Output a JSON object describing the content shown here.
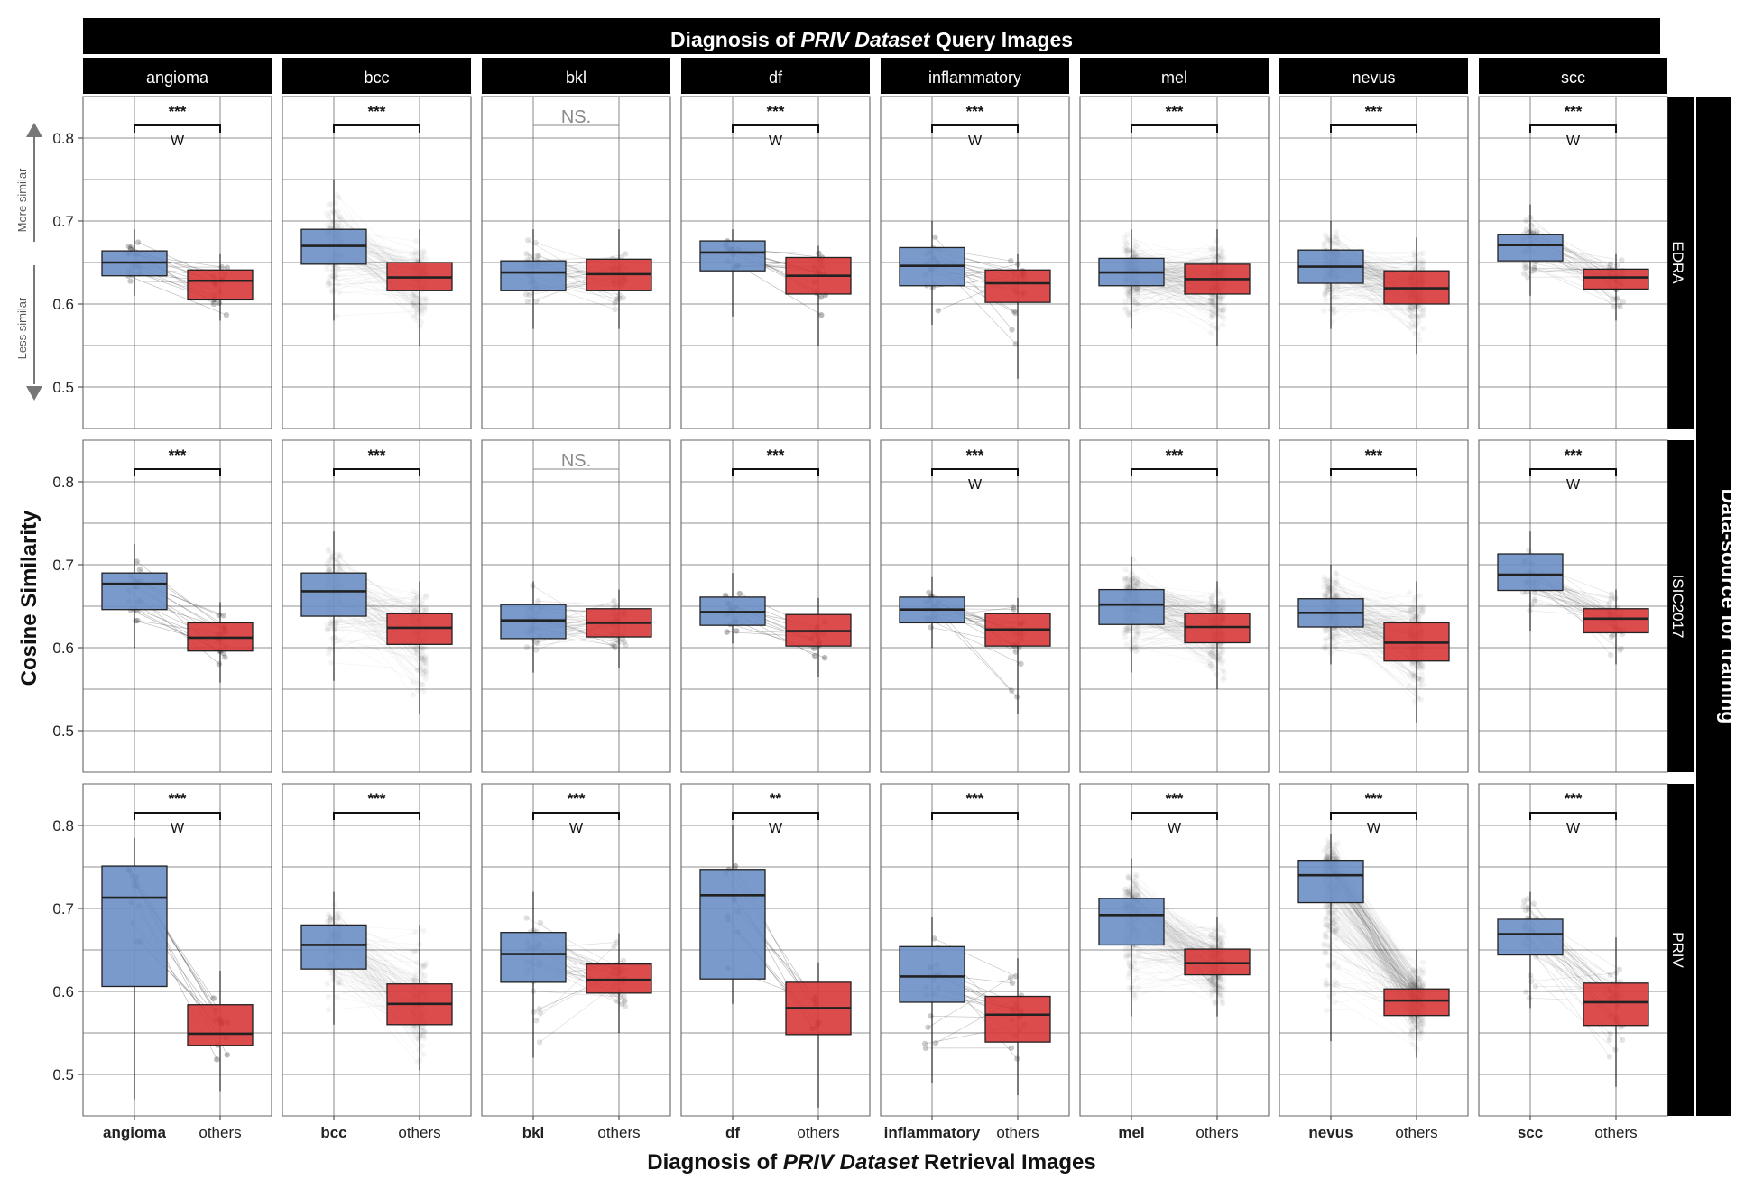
{
  "chart_data": {
    "type": "box",
    "title": "Diagnosis of PRIV Dataset Query Images",
    "title_parts": {
      "pre": "Diagnosis of ",
      "italic": "PRIV Dataset",
      "post": " Query Images"
    },
    "xlabel": "Diagnosis of PRIV Dataset Retrieval Images",
    "xlabel_parts": {
      "pre": "Diagnosis of ",
      "italic": "PRIV Dataset",
      "post": " Retrieval Images"
    },
    "ylabel": "Cosine Similarity",
    "right_strip_title": "Data-source for training",
    "columns": [
      "angioma",
      "bcc",
      "bkl",
      "df",
      "inflammatory",
      "mel",
      "nevus",
      "scc"
    ],
    "rows": [
      "EDRA",
      "ISIC2017",
      "PRIV"
    ],
    "x_categories": [
      "<column>",
      "others"
    ],
    "others_label": "others",
    "ylim": [
      0.45,
      0.85
    ],
    "yticks": [
      0.5,
      0.6,
      0.7,
      0.8
    ],
    "grid": true,
    "direction_arrow": {
      "up_label": "More similar",
      "down_label": "Less similar"
    },
    "colors": {
      "query_box": "#6b8fc7",
      "others_box": "#d8383a",
      "strip": "#000000",
      "line": "#b5b5b5"
    },
    "panels": [
      {
        "row": "EDRA",
        "col": "angioma",
        "sig": "***",
        "w": true,
        "match": {
          "q1": 0.634,
          "med": 0.65,
          "q3": 0.664,
          "lo": 0.61,
          "hi": 0.69
        },
        "others": {
          "q1": 0.605,
          "med": 0.628,
          "q3": 0.641,
          "lo": 0.58,
          "hi": 0.66
        },
        "n": 18
      },
      {
        "row": "EDRA",
        "col": "bcc",
        "sig": "***",
        "w": false,
        "match": {
          "q1": 0.648,
          "med": 0.67,
          "q3": 0.69,
          "lo": 0.58,
          "hi": 0.75
        },
        "others": {
          "q1": 0.616,
          "med": 0.632,
          "q3": 0.65,
          "lo": 0.55,
          "hi": 0.69
        },
        "n": 120
      },
      {
        "row": "EDRA",
        "col": "bkl",
        "sig": "NS.",
        "w": false,
        "match": {
          "q1": 0.616,
          "med": 0.638,
          "q3": 0.652,
          "lo": 0.57,
          "hi": 0.69
        },
        "others": {
          "q1": 0.616,
          "med": 0.636,
          "q3": 0.654,
          "lo": 0.57,
          "hi": 0.69
        },
        "n": 35
      },
      {
        "row": "EDRA",
        "col": "df",
        "sig": "***",
        "w": true,
        "match": {
          "q1": 0.64,
          "med": 0.662,
          "q3": 0.676,
          "lo": 0.585,
          "hi": 0.69
        },
        "others": {
          "q1": 0.612,
          "med": 0.634,
          "q3": 0.656,
          "lo": 0.55,
          "hi": 0.67
        },
        "n": 14
      },
      {
        "row": "EDRA",
        "col": "inflammatory",
        "sig": "***",
        "w": true,
        "match": {
          "q1": 0.622,
          "med": 0.646,
          "q3": 0.668,
          "lo": 0.575,
          "hi": 0.7
        },
        "others": {
          "q1": 0.602,
          "med": 0.625,
          "q3": 0.641,
          "lo": 0.51,
          "hi": 0.66
        },
        "n": 20
      },
      {
        "row": "EDRA",
        "col": "mel",
        "sig": "***",
        "w": false,
        "match": {
          "q1": 0.622,
          "med": 0.638,
          "q3": 0.655,
          "lo": 0.57,
          "hi": 0.69
        },
        "others": {
          "q1": 0.612,
          "med": 0.63,
          "q3": 0.648,
          "lo": 0.55,
          "hi": 0.69
        },
        "n": 200
      },
      {
        "row": "EDRA",
        "col": "nevus",
        "sig": "***",
        "w": false,
        "match": {
          "q1": 0.625,
          "med": 0.645,
          "q3": 0.665,
          "lo": 0.57,
          "hi": 0.7
        },
        "others": {
          "q1": 0.6,
          "med": 0.619,
          "q3": 0.64,
          "lo": 0.54,
          "hi": 0.68
        },
        "n": 200
      },
      {
        "row": "EDRA",
        "col": "scc",
        "sig": "***",
        "w": true,
        "match": {
          "q1": 0.652,
          "med": 0.671,
          "q3": 0.684,
          "lo": 0.61,
          "hi": 0.72
        },
        "others": {
          "q1": 0.618,
          "med": 0.632,
          "q3": 0.642,
          "lo": 0.58,
          "hi": 0.66
        },
        "n": 40
      },
      {
        "row": "ISIC2017",
        "col": "angioma",
        "sig": "***",
        "w": false,
        "match": {
          "q1": 0.646,
          "med": 0.677,
          "q3": 0.69,
          "lo": 0.6,
          "hi": 0.725
        },
        "others": {
          "q1": 0.596,
          "med": 0.612,
          "q3": 0.63,
          "lo": 0.558,
          "hi": 0.655
        },
        "n": 18
      },
      {
        "row": "ISIC2017",
        "col": "bcc",
        "sig": "***",
        "w": false,
        "match": {
          "q1": 0.638,
          "med": 0.668,
          "q3": 0.69,
          "lo": 0.56,
          "hi": 0.74
        },
        "others": {
          "q1": 0.604,
          "med": 0.624,
          "q3": 0.641,
          "lo": 0.52,
          "hi": 0.68
        },
        "n": 120
      },
      {
        "row": "ISIC2017",
        "col": "bkl",
        "sig": "NS.",
        "w": false,
        "match": {
          "q1": 0.611,
          "med": 0.633,
          "q3": 0.652,
          "lo": 0.57,
          "hi": 0.68
        },
        "others": {
          "q1": 0.613,
          "med": 0.63,
          "q3": 0.647,
          "lo": 0.575,
          "hi": 0.67
        },
        "n": 35
      },
      {
        "row": "ISIC2017",
        "col": "df",
        "sig": "***",
        "w": false,
        "match": {
          "q1": 0.627,
          "med": 0.643,
          "q3": 0.661,
          "lo": 0.605,
          "hi": 0.69
        },
        "others": {
          "q1": 0.602,
          "med": 0.62,
          "q3": 0.64,
          "lo": 0.565,
          "hi": 0.66
        },
        "n": 14
      },
      {
        "row": "ISIC2017",
        "col": "inflammatory",
        "sig": "***",
        "w": true,
        "match": {
          "q1": 0.63,
          "med": 0.646,
          "q3": 0.661,
          "lo": 0.6,
          "hi": 0.685
        },
        "others": {
          "q1": 0.602,
          "med": 0.622,
          "q3": 0.641,
          "lo": 0.52,
          "hi": 0.66
        },
        "n": 20
      },
      {
        "row": "ISIC2017",
        "col": "mel",
        "sig": "***",
        "w": false,
        "match": {
          "q1": 0.628,
          "med": 0.652,
          "q3": 0.67,
          "lo": 0.57,
          "hi": 0.71
        },
        "others": {
          "q1": 0.606,
          "med": 0.625,
          "q3": 0.641,
          "lo": 0.55,
          "hi": 0.68
        },
        "n": 200
      },
      {
        "row": "ISIC2017",
        "col": "nevus",
        "sig": "***",
        "w": false,
        "match": {
          "q1": 0.625,
          "med": 0.642,
          "q3": 0.659,
          "lo": 0.58,
          "hi": 0.7
        },
        "others": {
          "q1": 0.584,
          "med": 0.606,
          "q3": 0.63,
          "lo": 0.51,
          "hi": 0.68
        },
        "n": 200
      },
      {
        "row": "ISIC2017",
        "col": "scc",
        "sig": "***",
        "w": true,
        "match": {
          "q1": 0.669,
          "med": 0.688,
          "q3": 0.713,
          "lo": 0.62,
          "hi": 0.74
        },
        "others": {
          "q1": 0.618,
          "med": 0.635,
          "q3": 0.647,
          "lo": 0.58,
          "hi": 0.67
        },
        "n": 40
      },
      {
        "row": "PRIV",
        "col": "angioma",
        "sig": "***",
        "w": true,
        "match": {
          "q1": 0.606,
          "med": 0.713,
          "q3": 0.751,
          "lo": 0.47,
          "hi": 0.785
        },
        "others": {
          "q1": 0.535,
          "med": 0.549,
          "q3": 0.584,
          "lo": 0.48,
          "hi": 0.625
        },
        "n": 12
      },
      {
        "row": "PRIV",
        "col": "bcc",
        "sig": "***",
        "w": false,
        "match": {
          "q1": 0.627,
          "med": 0.656,
          "q3": 0.68,
          "lo": 0.56,
          "hi": 0.72
        },
        "others": {
          "q1": 0.56,
          "med": 0.585,
          "q3": 0.609,
          "lo": 0.505,
          "hi": 0.68
        },
        "n": 120
      },
      {
        "row": "PRIV",
        "col": "bkl",
        "sig": "***",
        "w": true,
        "match": {
          "q1": 0.611,
          "med": 0.645,
          "q3": 0.671,
          "lo": 0.52,
          "hi": 0.72
        },
        "others": {
          "q1": 0.598,
          "med": 0.614,
          "q3": 0.633,
          "lo": 0.55,
          "hi": 0.67
        },
        "n": 35
      },
      {
        "row": "PRIV",
        "col": "df",
        "sig": "**",
        "w": true,
        "match": {
          "q1": 0.615,
          "med": 0.716,
          "q3": 0.747,
          "lo": 0.585,
          "hi": 0.8
        },
        "others": {
          "q1": 0.548,
          "med": 0.58,
          "q3": 0.611,
          "lo": 0.46,
          "hi": 0.635
        },
        "n": 10
      },
      {
        "row": "PRIV",
        "col": "inflammatory",
        "sig": "***",
        "w": false,
        "match": {
          "q1": 0.587,
          "med": 0.618,
          "q3": 0.654,
          "lo": 0.49,
          "hi": 0.69
        },
        "others": {
          "q1": 0.539,
          "med": 0.572,
          "q3": 0.594,
          "lo": 0.475,
          "hi": 0.64
        },
        "n": 20
      },
      {
        "row": "PRIV",
        "col": "mel",
        "sig": "***",
        "w": true,
        "match": {
          "q1": 0.656,
          "med": 0.692,
          "q3": 0.712,
          "lo": 0.57,
          "hi": 0.76
        },
        "others": {
          "q1": 0.62,
          "med": 0.634,
          "q3": 0.651,
          "lo": 0.57,
          "hi": 0.69
        },
        "n": 200
      },
      {
        "row": "PRIV",
        "col": "nevus",
        "sig": "***",
        "w": true,
        "match": {
          "q1": 0.707,
          "med": 0.74,
          "q3": 0.758,
          "lo": 0.54,
          "hi": 0.79
        },
        "others": {
          "q1": 0.571,
          "med": 0.589,
          "q3": 0.603,
          "lo": 0.52,
          "hi": 0.65
        },
        "n": 250
      },
      {
        "row": "PRIV",
        "col": "scc",
        "sig": "***",
        "w": true,
        "match": {
          "q1": 0.644,
          "med": 0.669,
          "q3": 0.687,
          "lo": 0.58,
          "hi": 0.72
        },
        "others": {
          "q1": 0.559,
          "med": 0.587,
          "q3": 0.61,
          "lo": 0.485,
          "hi": 0.665
        },
        "n": 40
      }
    ]
  }
}
